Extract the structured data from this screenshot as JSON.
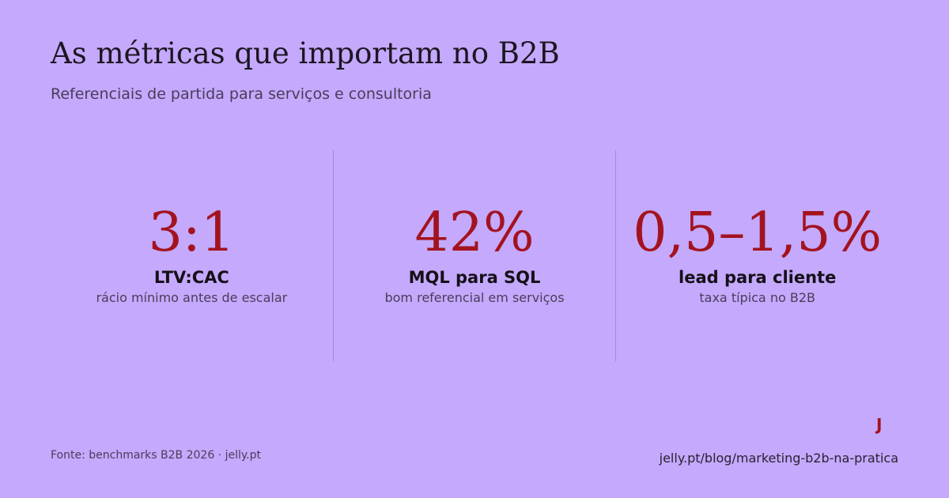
{
  "header": {
    "title": "As métricas que importam no B2B",
    "subtitle": "Referenciais de partida para serviços e consultoria"
  },
  "stats": [
    {
      "value": "3:1",
      "label": "LTV:CAC",
      "note": "rácio mínimo antes de escalar"
    },
    {
      "value": "42%",
      "label": "MQL para SQL",
      "note": "bom referencial em serviços"
    },
    {
      "value": "0,5–1,5%",
      "label": "lead para cliente",
      "note": "taxa típica no B2B"
    }
  ],
  "footer": {
    "logo": "J",
    "source": "Fonte: benchmarks B2B 2026 · jelly.pt",
    "url": "jelly.pt/blog/marketing-b2b-na-pratica"
  }
}
